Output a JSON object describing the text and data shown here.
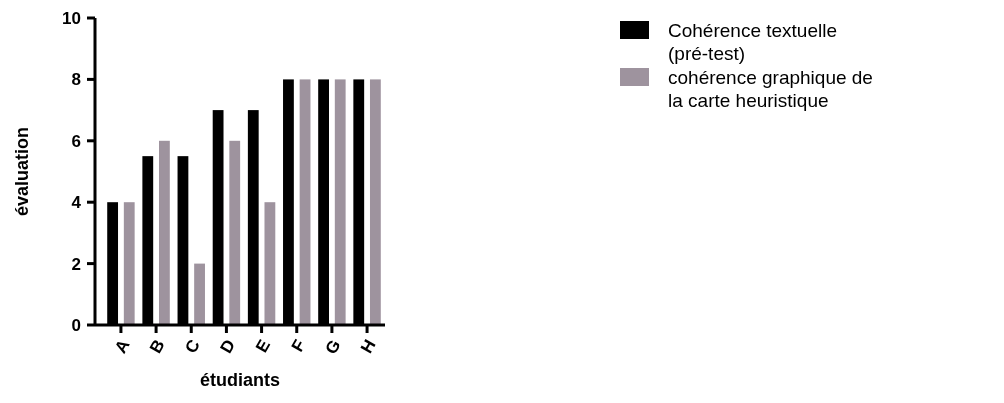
{
  "chart_data": {
    "type": "bar",
    "xlabel": "étudiants",
    "ylabel": "évaluation",
    "categories": [
      "A",
      "B",
      "C",
      "D",
      "E",
      "F",
      "G",
      "H"
    ],
    "series": [
      {
        "name": "Cohérence textuelle (pré-test)",
        "color": "#000000",
        "values": [
          4,
          5.5,
          5.5,
          7,
          7,
          8,
          8,
          8
        ]
      },
      {
        "name": "cohérence graphique de la carte heuristique",
        "color": "#9e939e",
        "values": [
          4,
          6,
          2,
          6,
          4,
          8,
          8,
          8
        ]
      }
    ],
    "ylim": [
      0,
      10
    ],
    "yticks": [
      0,
      2,
      4,
      6,
      8,
      10
    ],
    "grid": false,
    "legend": "right"
  }
}
